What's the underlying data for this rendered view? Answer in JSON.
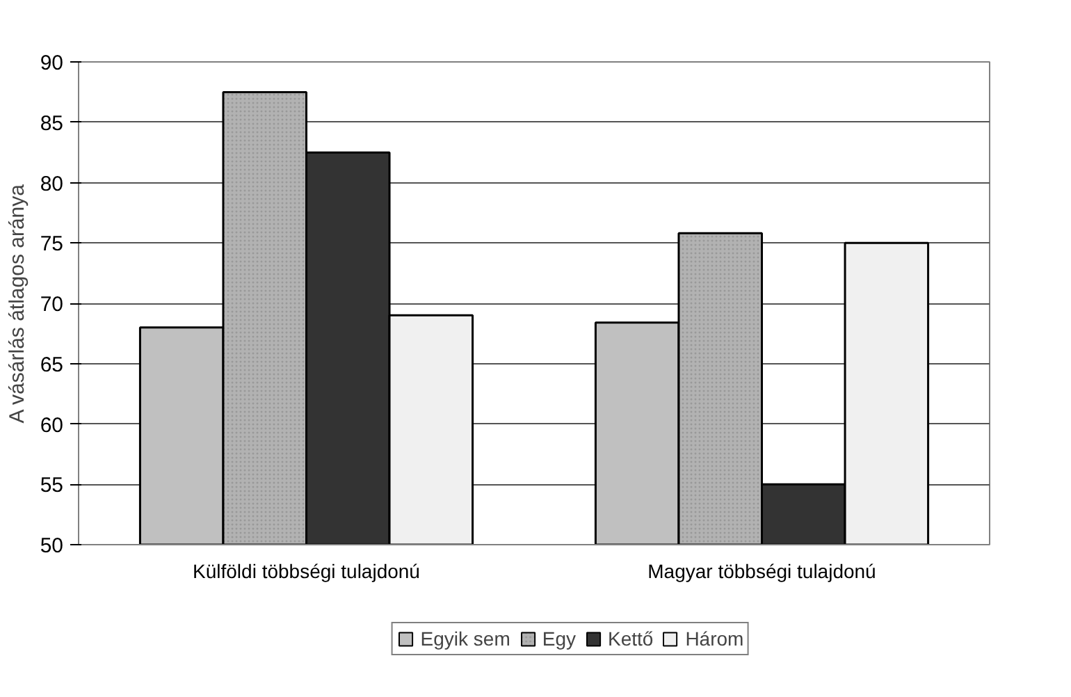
{
  "chart_data": {
    "type": "bar",
    "ylabel": "A vásárlás átlagos aránya",
    "categories": [
      "Külföldi többségi tulajdonú",
      "Magyar többségi tulajdonú"
    ],
    "series": [
      {
        "name": "Egyik sem",
        "color": "#c0c0c0",
        "values": [
          68,
          68.4
        ]
      },
      {
        "name": "Egy",
        "color": "#b2b2b2",
        "values": [
          87.5,
          75.8
        ]
      },
      {
        "name": "Kettő",
        "color": "#333333",
        "values": [
          82.5,
          55
        ]
      },
      {
        "name": "Három",
        "color": "#f0f0f0",
        "values": [
          69,
          75
        ]
      }
    ],
    "ylim": [
      50,
      90
    ],
    "yticks": [
      50,
      55,
      60,
      65,
      70,
      75,
      80,
      85,
      90
    ],
    "grid": "y",
    "legend": "bottom"
  }
}
